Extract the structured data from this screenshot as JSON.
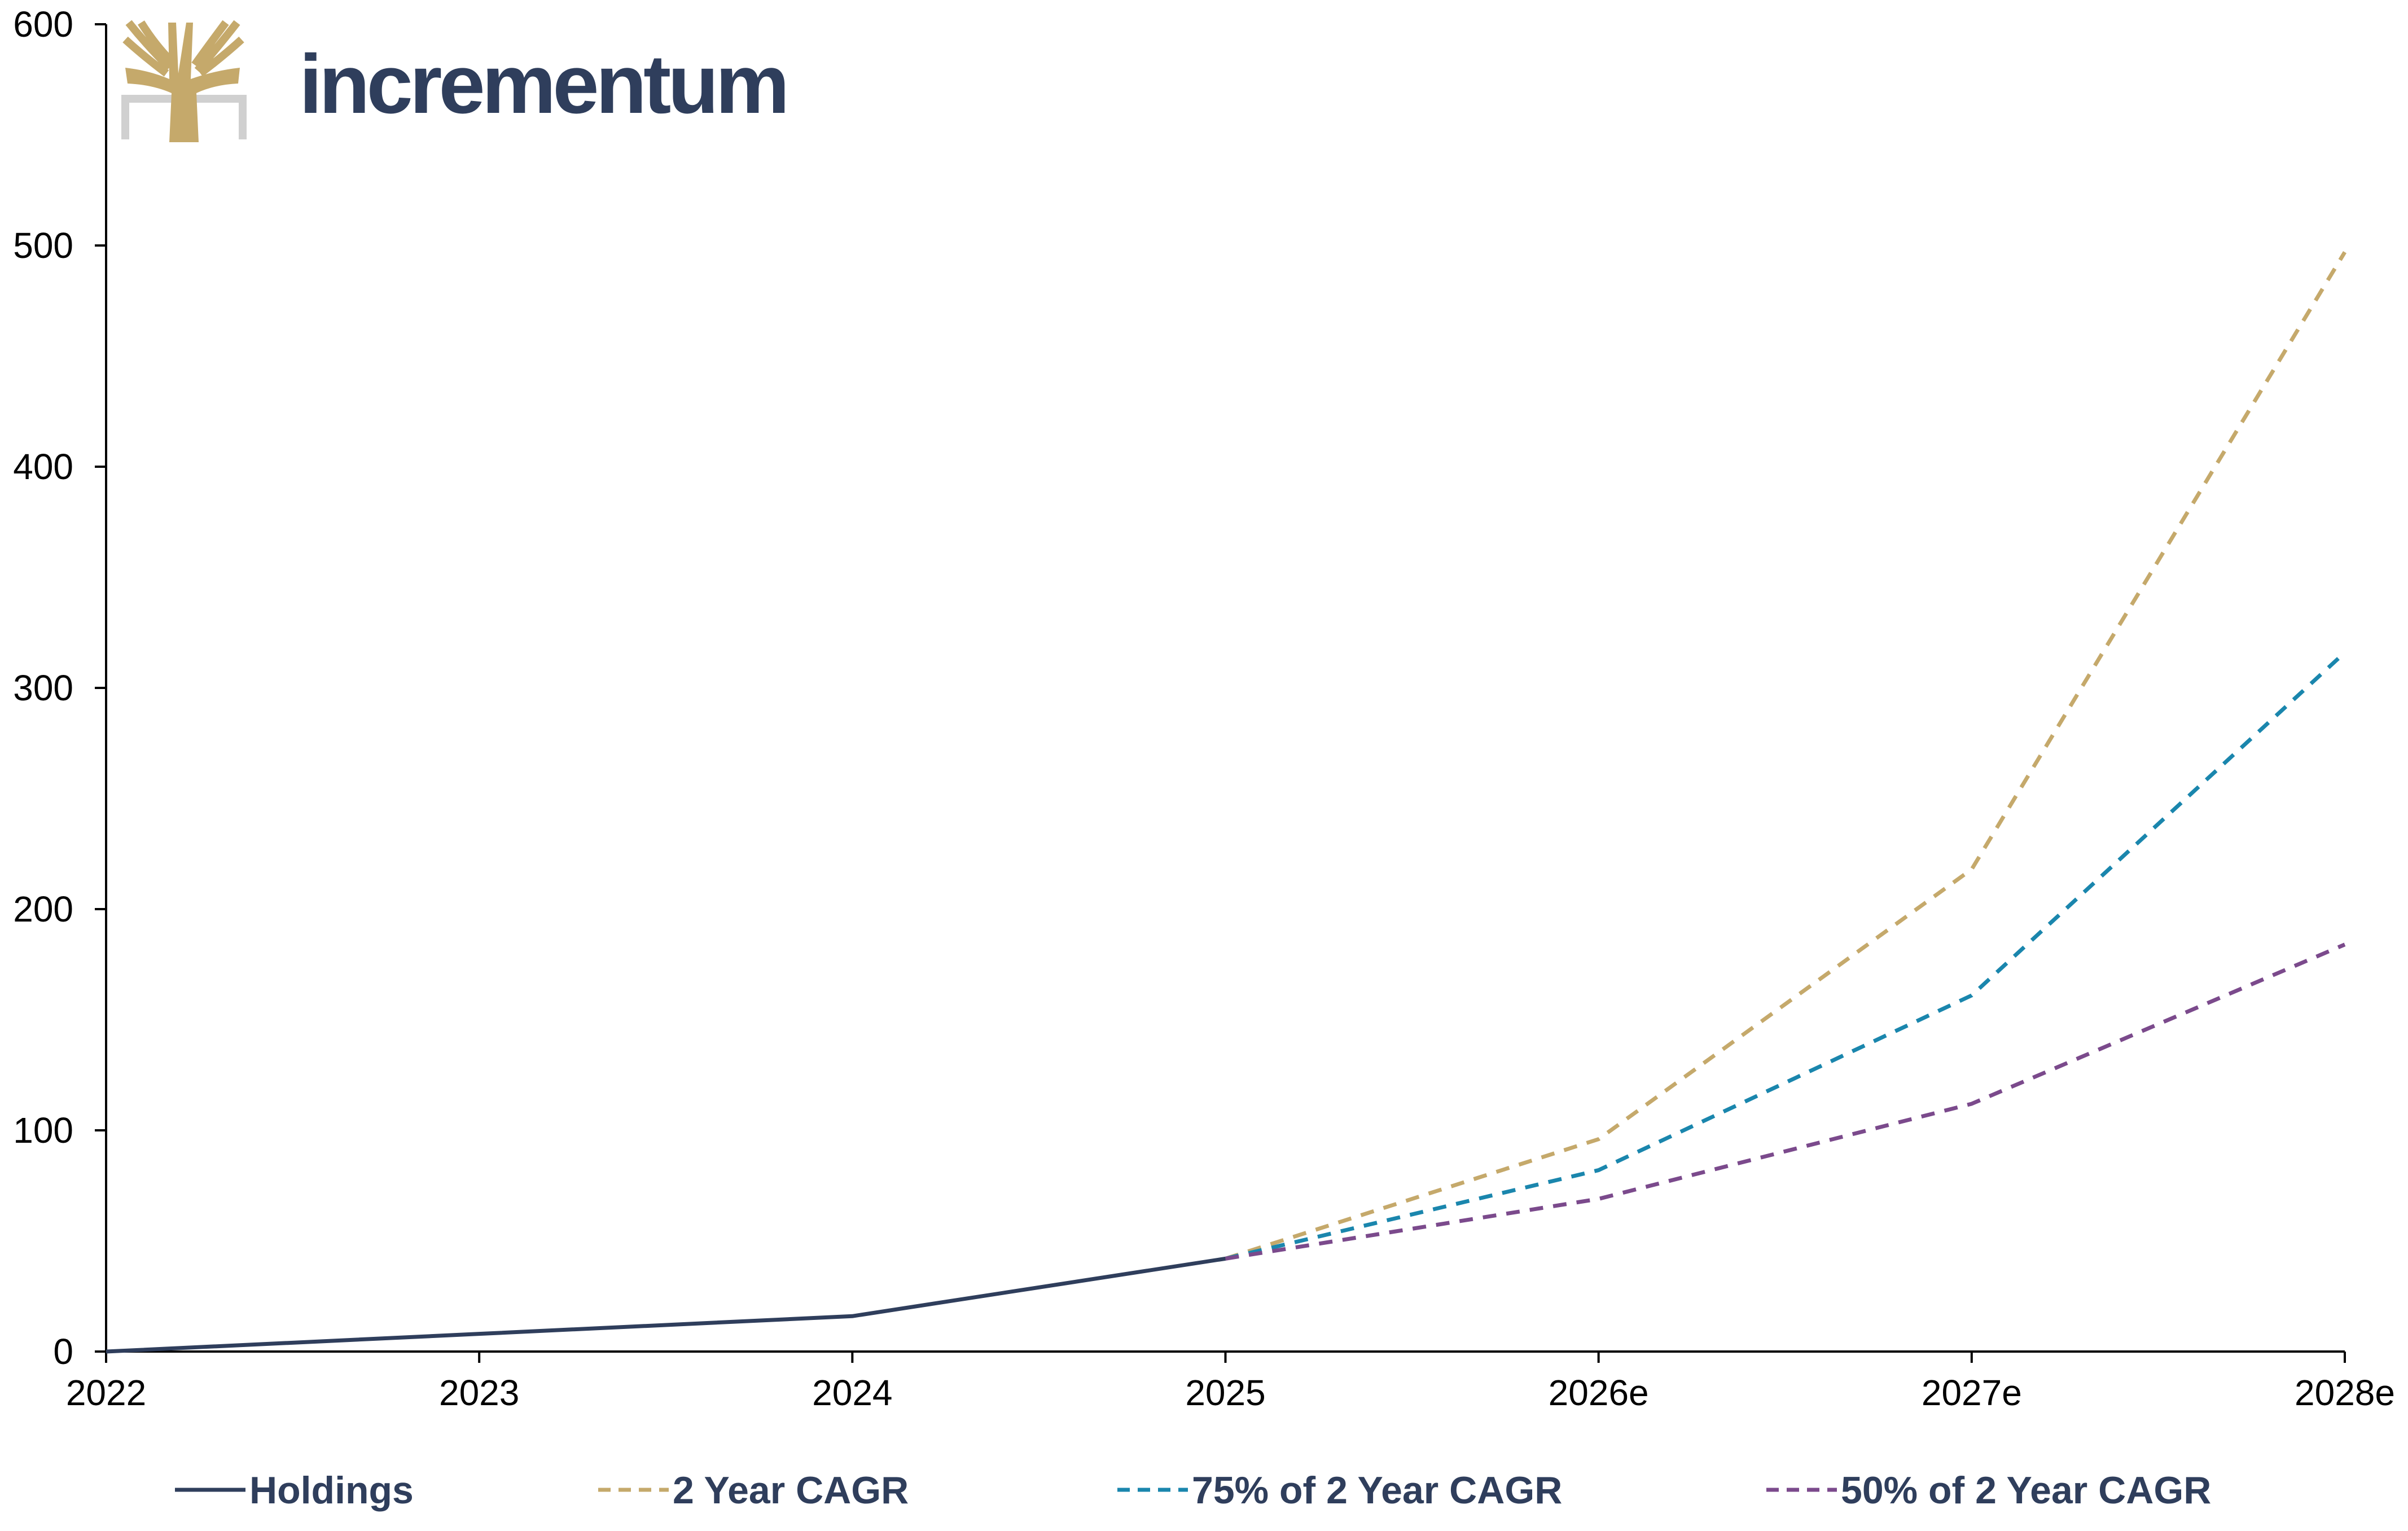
{
  "chart_data": {
    "type": "line",
    "categories": [
      "2022",
      "2023",
      "2024",
      "2025",
      "2026e",
      "2027e",
      "2028e"
    ],
    "ylim": [
      0,
      600
    ],
    "yticks": [
      "0",
      "100",
      "200",
      "300",
      "400",
      "500",
      "600"
    ],
    "grid": false,
    "legend_position": "bottom",
    "series": [
      {
        "name": "Holdings",
        "style": "solid",
        "color": "#2f3e5c",
        "values": [
          0,
          8,
          16,
          42,
          null,
          null,
          null
        ]
      },
      {
        "name": "2 Year CAGR",
        "style": "dashed",
        "color": "#c5a96b",
        "values": [
          null,
          null,
          null,
          42,
          96,
          218,
          497
        ]
      },
      {
        "name": "75% of 2 Year CAGR",
        "style": "dashed",
        "color": "#1a86ad",
        "values": [
          null,
          null,
          null,
          42,
          82,
          161,
          316
        ]
      },
      {
        "name": "50% of 2 Year CAGR",
        "style": "dashed",
        "color": "#7b4a8c",
        "values": [
          null,
          null,
          null,
          42,
          69,
          112,
          184
        ]
      }
    ]
  },
  "logo": {
    "text": "incrementum",
    "text_color": "#2f3e5c",
    "tree_color": "#c5a96b",
    "bracket_color": "#d0d0d0",
    "icon": "tree-icon"
  }
}
